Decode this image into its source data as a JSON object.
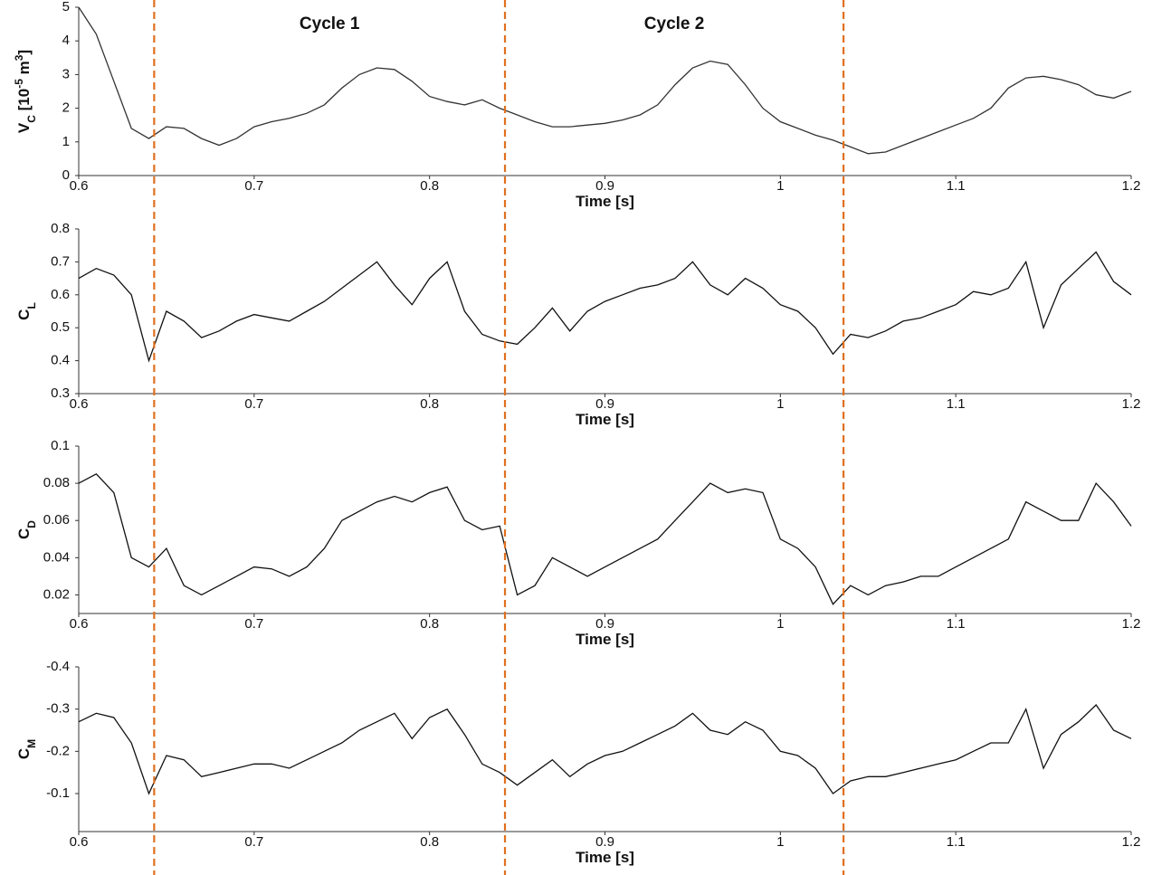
{
  "chart_data": [
    {
      "type": "line",
      "color": "#333333",
      "ylabel": [
        {
          "text": "V"
        },
        {
          "text": "C",
          "sub": true
        },
        {
          "text": " [10"
        },
        {
          "text": "-5",
          "sup": true
        },
        {
          "text": " m"
        },
        {
          "text": "3",
          "sup": true
        },
        {
          "text": "]"
        }
      ],
      "xlabel": "Time [s]",
      "x": [
        0.6,
        0.61,
        0.62,
        0.63,
        0.64,
        0.65,
        0.66,
        0.67,
        0.68,
        0.69,
        0.7,
        0.71,
        0.72,
        0.73,
        0.74,
        0.75,
        0.76,
        0.77,
        0.78,
        0.79,
        0.8,
        0.81,
        0.82,
        0.83,
        0.84,
        0.85,
        0.86,
        0.87,
        0.88,
        0.89,
        0.9,
        0.91,
        0.92,
        0.93,
        0.94,
        0.95,
        0.96,
        0.97,
        0.98,
        0.99,
        1.0,
        1.01,
        1.02,
        1.03,
        1.04,
        1.05,
        1.06,
        1.07,
        1.08,
        1.09,
        1.1,
        1.11,
        1.12,
        1.13,
        1.14,
        1.15,
        1.16,
        1.17,
        1.18,
        1.19,
        1.2
      ],
      "values": [
        5.0,
        4.2,
        2.8,
        1.4,
        1.1,
        1.45,
        1.4,
        1.1,
        0.9,
        1.1,
        1.45,
        1.6,
        1.7,
        1.85,
        2.1,
        2.6,
        3.0,
        3.2,
        3.15,
        2.8,
        2.35,
        2.2,
        2.1,
        2.25,
        2.0,
        1.8,
        1.6,
        1.45,
        1.45,
        1.5,
        1.55,
        1.65,
        1.8,
        2.1,
        2.7,
        3.2,
        3.4,
        3.3,
        2.7,
        2.0,
        1.6,
        1.4,
        1.2,
        1.05,
        0.85,
        0.65,
        0.7,
        0.9,
        1.1,
        1.3,
        1.5,
        1.7,
        2.0,
        2.6,
        2.9,
        2.95,
        2.85,
        2.7,
        2.4,
        2.3,
        2.5
      ],
      "xlim": [
        0.6,
        1.2
      ],
      "xticks": [
        0.6,
        0.7,
        0.8,
        0.9,
        1,
        1.1,
        1.2
      ],
      "ylim": [
        0,
        5
      ],
      "yticks": [
        0,
        1,
        2,
        3,
        4,
        5
      ]
    },
    {
      "type": "line",
      "color": "#111111",
      "ylabel": [
        {
          "text": "C"
        },
        {
          "text": "L",
          "sub": true
        }
      ],
      "xlabel": "Time [s]",
      "x": [
        0.6,
        0.61,
        0.62,
        0.63,
        0.64,
        0.65,
        0.66,
        0.67,
        0.68,
        0.69,
        0.7,
        0.71,
        0.72,
        0.73,
        0.74,
        0.75,
        0.76,
        0.77,
        0.78,
        0.79,
        0.8,
        0.81,
        0.82,
        0.83,
        0.84,
        0.85,
        0.86,
        0.87,
        0.88,
        0.89,
        0.9,
        0.91,
        0.92,
        0.93,
        0.94,
        0.95,
        0.96,
        0.97,
        0.98,
        0.99,
        1.0,
        1.01,
        1.02,
        1.03,
        1.04,
        1.05,
        1.06,
        1.07,
        1.08,
        1.09,
        1.1,
        1.11,
        1.12,
        1.13,
        1.14,
        1.15,
        1.16,
        1.17,
        1.18,
        1.19,
        1.2
      ],
      "values": [
        0.65,
        0.68,
        0.66,
        0.6,
        0.4,
        0.55,
        0.52,
        0.47,
        0.49,
        0.52,
        0.54,
        0.53,
        0.52,
        0.55,
        0.58,
        0.62,
        0.66,
        0.7,
        0.63,
        0.57,
        0.65,
        0.7,
        0.55,
        0.48,
        0.46,
        0.45,
        0.5,
        0.56,
        0.49,
        0.55,
        0.58,
        0.6,
        0.62,
        0.63,
        0.65,
        0.7,
        0.63,
        0.6,
        0.65,
        0.62,
        0.57,
        0.55,
        0.5,
        0.42,
        0.48,
        0.47,
        0.49,
        0.52,
        0.53,
        0.55,
        0.57,
        0.61,
        0.6,
        0.62,
        0.7,
        0.5,
        0.63,
        0.68,
        0.73,
        0.64,
        0.6
      ],
      "xlim": [
        0.6,
        1.2
      ],
      "xticks": [
        0.6,
        0.7,
        0.8,
        0.9,
        1,
        1.1,
        1.2
      ],
      "ylim": [
        0.3,
        0.8
      ],
      "yticks": [
        0.3,
        0.4,
        0.5,
        0.6,
        0.7,
        0.8
      ]
    },
    {
      "type": "line",
      "color": "#111111",
      "ylabel": [
        {
          "text": "C"
        },
        {
          "text": "D",
          "sub": true
        }
      ],
      "xlabel": "Time [s]",
      "x": [
        0.6,
        0.61,
        0.62,
        0.63,
        0.64,
        0.65,
        0.66,
        0.67,
        0.68,
        0.69,
        0.7,
        0.71,
        0.72,
        0.73,
        0.74,
        0.75,
        0.76,
        0.77,
        0.78,
        0.79,
        0.8,
        0.81,
        0.82,
        0.83,
        0.84,
        0.85,
        0.86,
        0.87,
        0.88,
        0.89,
        0.9,
        0.91,
        0.92,
        0.93,
        0.94,
        0.95,
        0.96,
        0.97,
        0.98,
        0.99,
        1.0,
        1.01,
        1.02,
        1.03,
        1.04,
        1.05,
        1.06,
        1.07,
        1.08,
        1.09,
        1.1,
        1.11,
        1.12,
        1.13,
        1.14,
        1.15,
        1.16,
        1.17,
        1.18,
        1.19,
        1.2
      ],
      "values": [
        0.08,
        0.085,
        0.075,
        0.04,
        0.035,
        0.045,
        0.025,
        0.02,
        0.025,
        0.03,
        0.035,
        0.034,
        0.03,
        0.035,
        0.045,
        0.06,
        0.065,
        0.07,
        0.073,
        0.07,
        0.075,
        0.078,
        0.06,
        0.055,
        0.057,
        0.02,
        0.025,
        0.04,
        0.035,
        0.03,
        0.035,
        0.04,
        0.045,
        0.05,
        0.06,
        0.07,
        0.08,
        0.075,
        0.077,
        0.075,
        0.05,
        0.045,
        0.035,
        0.015,
        0.025,
        0.02,
        0.025,
        0.027,
        0.03,
        0.03,
        0.035,
        0.04,
        0.045,
        0.05,
        0.07,
        0.065,
        0.06,
        0.06,
        0.08,
        0.07,
        0.057
      ],
      "xlim": [
        0.6,
        1.2
      ],
      "xticks": [
        0.6,
        0.7,
        0.8,
        0.9,
        1,
        1.1,
        1.2
      ],
      "ylim": [
        0.01,
        0.1
      ],
      "yticks": [
        0.02,
        0.04,
        0.06,
        0.08,
        0.1
      ]
    },
    {
      "type": "line",
      "color": "#111111",
      "ylabel": [
        {
          "text": "C"
        },
        {
          "text": "M",
          "sub": true
        }
      ],
      "xlabel": "Time [s]",
      "x": [
        0.6,
        0.61,
        0.62,
        0.63,
        0.64,
        0.65,
        0.66,
        0.67,
        0.68,
        0.69,
        0.7,
        0.71,
        0.72,
        0.73,
        0.74,
        0.75,
        0.76,
        0.77,
        0.78,
        0.79,
        0.8,
        0.81,
        0.82,
        0.83,
        0.84,
        0.85,
        0.86,
        0.87,
        0.88,
        0.89,
        0.9,
        0.91,
        0.92,
        0.93,
        0.94,
        0.95,
        0.96,
        0.97,
        0.98,
        0.99,
        1.0,
        1.01,
        1.02,
        1.03,
        1.04,
        1.05,
        1.06,
        1.07,
        1.08,
        1.09,
        1.1,
        1.11,
        1.12,
        1.13,
        1.14,
        1.15,
        1.16,
        1.17,
        1.18,
        1.19,
        1.2
      ],
      "values": [
        -0.27,
        -0.29,
        -0.28,
        -0.22,
        -0.1,
        -0.19,
        -0.18,
        -0.14,
        -0.15,
        -0.16,
        -0.17,
        -0.17,
        -0.16,
        -0.18,
        -0.2,
        -0.22,
        -0.25,
        -0.27,
        -0.29,
        -0.23,
        -0.28,
        -0.3,
        -0.24,
        -0.17,
        -0.15,
        -0.12,
        -0.15,
        -0.18,
        -0.14,
        -0.17,
        -0.19,
        -0.2,
        -0.22,
        -0.24,
        -0.26,
        -0.29,
        -0.25,
        -0.24,
        -0.27,
        -0.25,
        -0.2,
        -0.19,
        -0.16,
        -0.1,
        -0.13,
        -0.14,
        -0.14,
        -0.15,
        -0.16,
        -0.17,
        -0.18,
        -0.2,
        -0.22,
        -0.22,
        -0.3,
        -0.16,
        -0.24,
        -0.27,
        -0.31,
        -0.25,
        -0.23
      ],
      "xlim": [
        0.6,
        1.2
      ],
      "xticks": [
        0.6,
        0.7,
        0.8,
        0.9,
        1,
        1.1,
        1.2
      ],
      "ylim": [
        -0.01,
        -0.4
      ],
      "yticks": [
        -0.4,
        -0.3,
        -0.2,
        -0.1
      ]
    }
  ],
  "cycle_markers": {
    "color": "#e07020",
    "x": [
      0.643,
      0.843,
      1.036
    ]
  },
  "annotations": [
    "Cycle 1",
    "Cycle 2"
  ]
}
